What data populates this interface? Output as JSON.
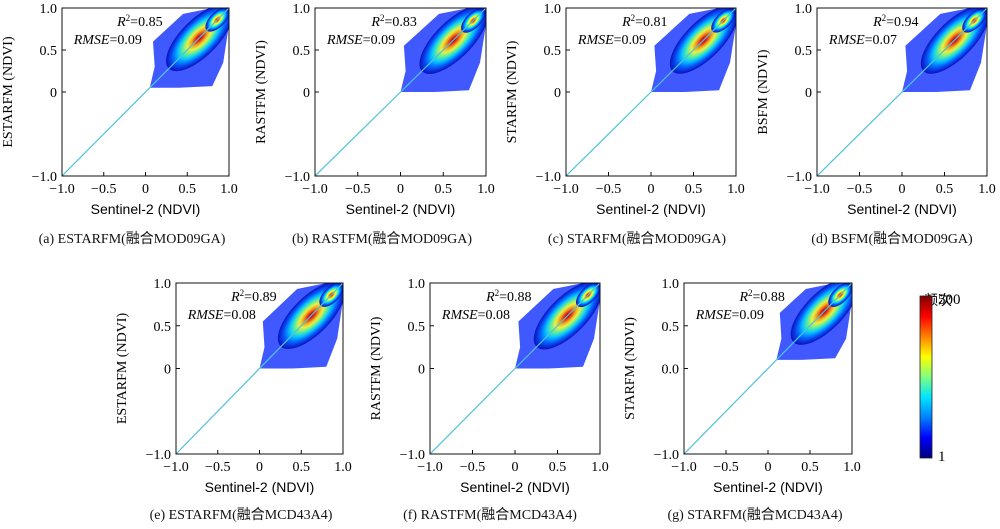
{
  "colorbar": {
    "title": "频次",
    "max_label": "500",
    "min_label": "1",
    "colors": [
      "#00007f",
      "#0000ff",
      "#0080ff",
      "#00e5ff",
      "#7fff7f",
      "#ffff00",
      "#ff8000",
      "#ff0000",
      "#7f0000"
    ]
  },
  "chart_data": [
    {
      "type": "scatter",
      "caption": "(a) ESTARFM(融合MOD09GA)",
      "xlabel": "Sentinel-2 (NDVI)",
      "ylabel": "ESTARFM (NDVI)",
      "xlim": [
        -1.0,
        1.0
      ],
      "ylim": [
        -1.0,
        1.0
      ],
      "x_ticks": [
        "−1.0",
        "−0.5",
        "0",
        "0.5",
        "1.0"
      ],
      "y_ticks": [
        "−1.0",
        "0",
        "0.5",
        "1.0"
      ],
      "r2_value": "=0.85",
      "rmse_value": "=0.09",
      "density_center": [
        0.86,
        0.86
      ],
      "x_range": [
        0.05,
        1.0
      ],
      "y_range": [
        0.05,
        1.0
      ]
    },
    {
      "type": "scatter",
      "caption": "(b) RASTFM(融合MOD09GA)",
      "xlabel": "Sentinel-2 (NDVI)",
      "ylabel": "RASTFM (NDVI)",
      "xlim": [
        -1.0,
        1.0
      ],
      "ylim": [
        -1.0,
        1.0
      ],
      "x_ticks": [
        "−1.0",
        "−0.5",
        "0",
        "0.5",
        "1.0"
      ],
      "y_ticks": [
        "−1.0",
        "0",
        "0.5",
        "1.0"
      ],
      "r2_value": "=0.83",
      "rmse_value": "=0.09",
      "density_center": [
        0.85,
        0.85
      ],
      "x_range": [
        0.0,
        1.0
      ],
      "y_range": [
        0.0,
        1.0
      ]
    },
    {
      "type": "scatter",
      "caption": "(c) STARFM(融合MOD09GA)",
      "xlabel": "Sentinel-2 (NDVI)",
      "ylabel": "STARFM (NDVI)",
      "xlim": [
        -1.0,
        1.0
      ],
      "ylim": [
        -1.0,
        1.0
      ],
      "x_ticks": [
        "−1.0",
        "−0.5",
        "0",
        "0.5",
        "1.0"
      ],
      "y_ticks": [
        "−1.0",
        "0",
        "0.5",
        "1.0"
      ],
      "r2_value": "=0.81",
      "rmse_value": "=0.09",
      "density_center": [
        0.85,
        0.85
      ],
      "x_range": [
        0.0,
        1.0
      ],
      "y_range": [
        0.0,
        1.0
      ]
    },
    {
      "type": "scatter",
      "caption": "(d) BSFM(融合MOD09GA)",
      "xlabel": "Sentinel-2 (NDVI)",
      "ylabel": "BSFM (NDVI)",
      "xlim": [
        -1.0,
        1.0
      ],
      "ylim": [
        -1.0,
        1.0
      ],
      "x_ticks": [
        "−1.0",
        "−0.5",
        "0",
        "0.5",
        "1.0"
      ],
      "y_ticks": [
        "−1.0",
        "0",
        "0.5",
        "1.0"
      ],
      "r2_value": "=0.94",
      "rmse_value": "=0.07",
      "density_center": [
        0.85,
        0.85
      ],
      "x_range": [
        0.0,
        1.0
      ],
      "y_range": [
        0.0,
        1.0
      ]
    },
    {
      "type": "scatter",
      "caption": "(e) ESTARFM(融合MCD43A4)",
      "xlabel": "Sentinel-2 (NDVI)",
      "ylabel": "ESTARFM (NDVI)",
      "xlim": [
        -1.0,
        1.0
      ],
      "ylim": [
        -1.0,
        1.0
      ],
      "x_ticks": [
        "−1.0",
        "−0.5",
        "0",
        "0.5",
        "1.0"
      ],
      "y_ticks": [
        "−1.0",
        "0",
        "0.5",
        "1.0"
      ],
      "r2_value": "=0.89",
      "rmse_value": "=0.08",
      "density_center": [
        0.86,
        0.86
      ],
      "x_range": [
        0.0,
        1.0
      ],
      "y_range": [
        0.0,
        1.0
      ]
    },
    {
      "type": "scatter",
      "caption": "(f) RASTFM(融合MCD43A4)",
      "xlabel": "Sentinel-2 (NDVI)",
      "ylabel": "RASTFM (NDVI)",
      "xlim": [
        -1.0,
        1.0
      ],
      "ylim": [
        -1.0,
        1.0
      ],
      "x_ticks": [
        "−1.0",
        "−0.5",
        "0",
        "0.5",
        "1.0"
      ],
      "y_ticks": [
        "−1.0",
        "0",
        "0.5",
        "1.0"
      ],
      "r2_value": "=0.88",
      "rmse_value": "=0.08",
      "density_center": [
        0.86,
        0.86
      ],
      "x_range": [
        0.0,
        1.0
      ],
      "y_range": [
        0.0,
        1.0
      ]
    },
    {
      "type": "scatter",
      "caption": "(g) STARFM(融合MCD43A4)",
      "xlabel": "Sentinel-2 (NDVI)",
      "ylabel": "STARFM (NDVI)",
      "xlim": [
        -1.0,
        1.0
      ],
      "ylim": [
        -1.0,
        1.0
      ],
      "x_ticks": [
        "−1.0",
        "−0.5",
        "0",
        "0.5",
        "1.0"
      ],
      "y_ticks": [
        "−1.0",
        "0.0",
        "0.5",
        "1.0"
      ],
      "r2_value": "=0.88",
      "rmse_value": "=0.09",
      "density_center": [
        0.86,
        0.86
      ],
      "x_range": [
        0.1,
        1.0
      ],
      "y_range": [
        0.1,
        1.0
      ]
    }
  ]
}
